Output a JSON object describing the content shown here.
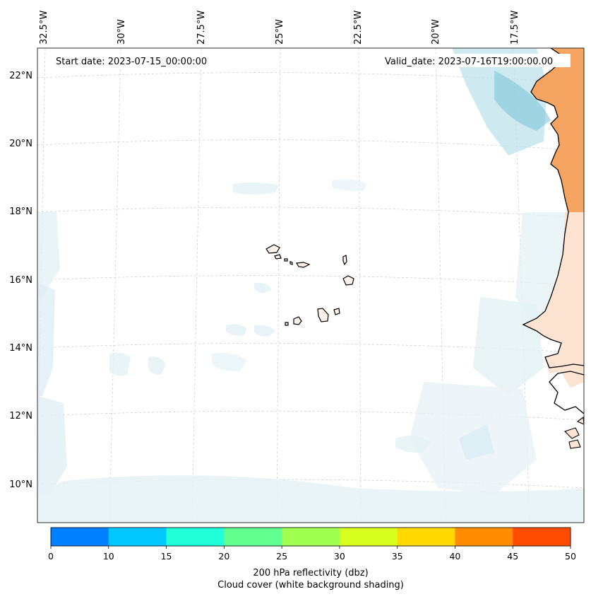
{
  "map": {
    "start_date_label": "Start date: 2023-07-15_00:00:00",
    "valid_date_label": "Valid_date: 2023-07-16T19:00:00.00",
    "lon_labels": [
      "32.5°W",
      "30°W",
      "27.5°W",
      "25°W",
      "22.5°W",
      "20°W",
      "17.5°W"
    ],
    "lat_labels": [
      "22°N",
      "20°N",
      "18°N",
      "16°N",
      "14°N",
      "12°N",
      "10°N"
    ],
    "land_color": "#f4a460",
    "cloud_color": "#cfe8f0"
  },
  "colorbar": {
    "ticks": [
      "0",
      "10",
      "15",
      "20",
      "25",
      "30",
      "35",
      "40",
      "45",
      "50"
    ],
    "colors": [
      "#0080ff",
      "#00c8ff",
      "#20ffd8",
      "#60ff90",
      "#a0ff50",
      "#d8ff20",
      "#ffd800",
      "#ff8c00",
      "#ff4c00"
    ],
    "label_line1": "200 hPa reflectivity (dbz)",
    "label_line2": "Cloud cover (white background shading)"
  }
}
